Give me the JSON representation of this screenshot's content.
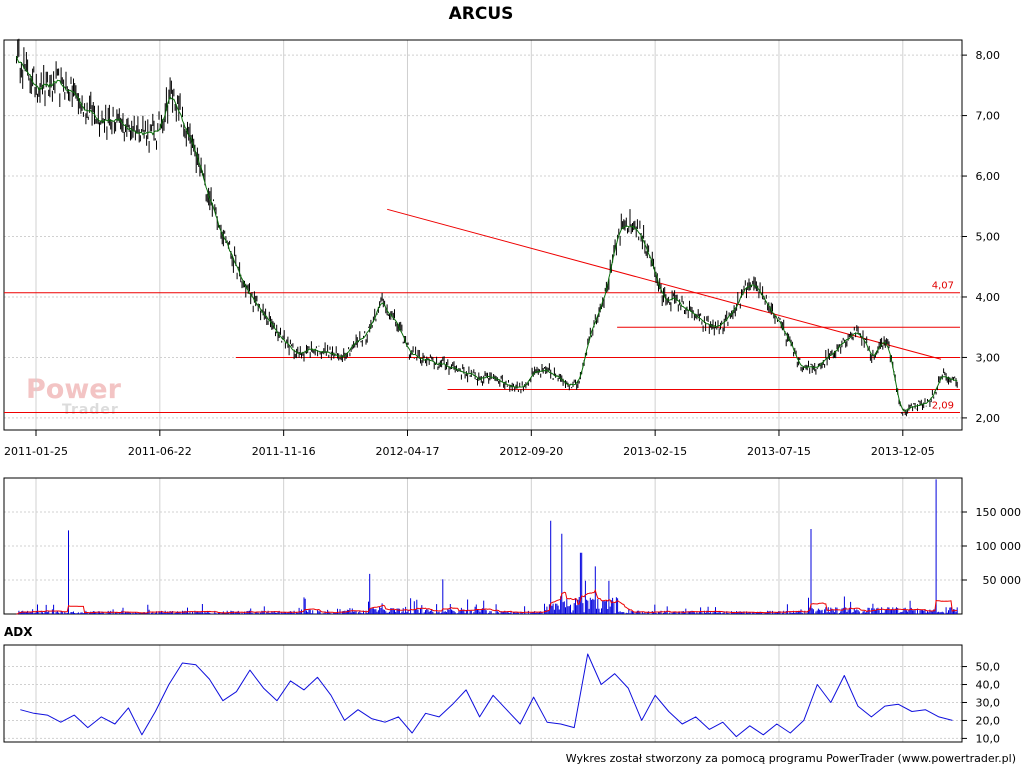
{
  "title": "ARCUS",
  "footer": "Wykres został stworzony za pomocą programu PowerTrader (www.powertrader.pl)",
  "watermark": {
    "line1": "Power",
    "line2": "Trader"
  },
  "adx_label": "ADX",
  "colors": {
    "price": "#0a6e0a",
    "levels": "#ee0000",
    "volume": "#0000dd",
    "volume_ma": "#ee0000",
    "adx": "#1010dd",
    "grid": "#d0d0d0"
  },
  "chart_data": [
    {
      "type": "line",
      "name": "price",
      "title": "ARCUS",
      "x_ticks": [
        "2011-01-25",
        "2011-06-22",
        "2011-11-16",
        "2012-04-17",
        "2012-09-20",
        "2013-02-15",
        "2013-07-15",
        "2013-12-05"
      ],
      "y_ticks": [
        "2,00",
        "3,00",
        "4,00",
        "5,00",
        "6,00",
        "7,00",
        "8,00"
      ],
      "ylim": [
        1.8,
        8.25
      ],
      "grid": true,
      "series": [
        {
          "values": [
            8.05,
            7.6,
            7.45,
            7.5,
            7.4,
            7.1,
            7.0,
            6.9,
            6.8,
            6.75,
            6.65,
            7.4,
            6.8,
            6.2,
            5.5,
            4.9,
            4.3,
            3.9,
            3.6,
            3.3,
            3.05,
            3.15,
            3.1,
            3.0,
            3.2,
            3.4,
            3.95,
            3.6,
            3.1,
            2.95,
            2.9,
            2.85,
            2.75,
            2.65,
            2.7,
            2.55,
            2.5,
            2.75,
            2.75,
            2.6,
            2.55,
            3.5,
            4.1,
            5.1,
            5.2,
            4.8,
            4.0,
            3.95,
            3.75,
            3.55,
            3.5,
            3.7,
            4.15,
            4.1,
            3.7,
            3.3,
            2.8,
            2.85,
            3.05,
            3.3,
            3.45,
            3.0,
            3.35,
            2.1,
            2.2,
            2.25,
            2.7,
            2.6
          ]
        }
      ],
      "levels": [
        {
          "value": 4.07,
          "label": "4,07"
        },
        {
          "value": 3.0
        },
        {
          "value": 3.5
        },
        {
          "value": 2.47
        },
        {
          "value": 2.09,
          "label": "2,09"
        }
      ],
      "trendline": {
        "from": [
          0.4,
          5.45
        ],
        "to": [
          0.738,
          2.97
        ]
      }
    },
    {
      "type": "bar",
      "name": "volume",
      "y_ticks": [
        "50 000",
        "100 000",
        "150 000"
      ],
      "ylim": [
        0,
        200000
      ],
      "spikes": [
        {
          "x": 0.055,
          "value": 123000
        },
        {
          "x": 0.375,
          "value": 59000
        },
        {
          "x": 0.453,
          "value": 51000
        },
        {
          "x": 0.568,
          "value": 137000
        },
        {
          "x": 0.58,
          "value": 118000
        },
        {
          "x": 0.6,
          "value": 90000
        },
        {
          "x": 0.615,
          "value": 70000
        },
        {
          "x": 0.845,
          "value": 125000
        },
        {
          "x": 0.978,
          "value": 198000
        }
      ],
      "ma_max": 55000
    },
    {
      "type": "line",
      "name": "ADX",
      "y_ticks": [
        "10,0",
        "20,0",
        "30,0",
        "40,0",
        "50,0"
      ],
      "ylim": [
        8,
        62
      ],
      "series": [
        {
          "values": [
            26,
            24,
            23,
            19,
            23,
            16,
            22,
            18,
            27,
            12,
            25,
            40,
            52,
            51,
            43,
            31,
            36,
            48,
            38,
            31,
            42,
            37,
            44,
            34,
            20,
            26,
            21,
            19,
            22,
            13,
            24,
            22,
            29,
            37,
            22,
            34,
            26,
            18,
            33,
            19,
            18,
            16,
            57,
            40,
            46,
            38,
            20,
            34,
            25,
            18,
            22,
            15,
            19,
            11,
            17,
            12,
            18,
            13,
            20,
            40,
            30,
            45,
            28,
            22,
            28,
            29,
            25,
            26,
            22,
            20
          ]
        }
      ]
    }
  ]
}
